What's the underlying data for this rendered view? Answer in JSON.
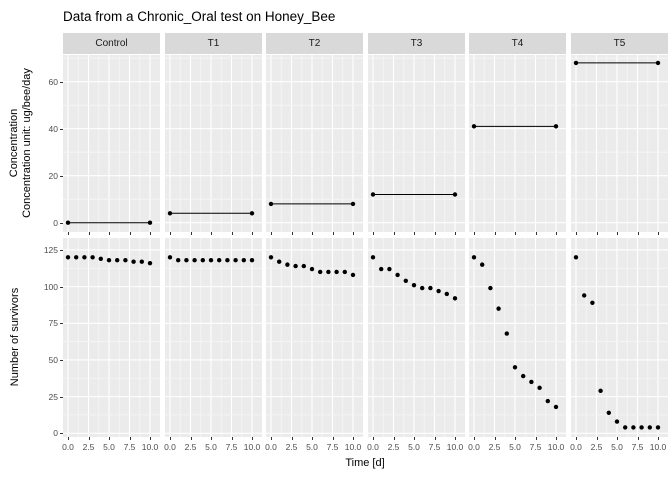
{
  "title": "Data from a Chronic_Oral test on Honey_Bee",
  "x_axis": {
    "title": "Time [d]",
    "tick_labels": [
      "0.0",
      "2.5",
      "5.0",
      "7.5",
      "10.0"
    ],
    "tick_days": [
      0,
      2.5,
      5,
      7.5,
      10
    ],
    "minor_days": [
      1.25,
      3.75,
      6.25,
      8.75
    ]
  },
  "top_plot": {
    "y_title_line1": "Concentration",
    "y_title_line2": "Concentration unit: ug/bee/day",
    "y_ticks": [
      0,
      20,
      40,
      60
    ],
    "y_minor": [
      10,
      30,
      50,
      70
    ]
  },
  "bottom_plot": {
    "y_title": "Number of survivors",
    "y_ticks": [
      0,
      25,
      50,
      75,
      100,
      125
    ],
    "y_minor": [
      12.5,
      37.5,
      62.5,
      87.5,
      112.5
    ]
  },
  "facets": [
    "Control",
    "T1",
    "T2",
    "T3",
    "T4",
    "T5"
  ],
  "chart_data": {
    "type": "scatter",
    "title": "Data from a Chronic_Oral test on Honey_Bee",
    "xlabel": "Time [d]",
    "x_range": [
      0,
      10
    ],
    "days": [
      0,
      1,
      2,
      3,
      4,
      5,
      6,
      7,
      8,
      9,
      10
    ],
    "facets": [
      "Control",
      "T1",
      "T2",
      "T3",
      "T4",
      "T5"
    ],
    "concentration": {
      "ylabel": "Concentration unit: ug/bee/day",
      "ylim": [
        0,
        70
      ],
      "unit": "ug/bee/day",
      "values": [
        0,
        4,
        8,
        12,
        41,
        68
      ]
    },
    "survivors": {
      "ylabel": "Number of survivors",
      "ylim": [
        0,
        125
      ],
      "series": [
        {
          "name": "Control",
          "values": [
            120,
            120,
            120,
            120,
            119,
            118,
            118,
            118,
            117,
            117,
            116
          ]
        },
        {
          "name": "T1",
          "values": [
            120,
            118,
            118,
            118,
            118,
            118,
            118,
            118,
            118,
            118,
            118
          ]
        },
        {
          "name": "T2",
          "values": [
            120,
            117,
            115,
            114,
            114,
            112,
            110,
            110,
            110,
            110,
            108
          ]
        },
        {
          "name": "T3",
          "values": [
            120,
            112,
            112,
            108,
            104,
            101,
            99,
            99,
            97,
            95,
            92
          ]
        },
        {
          "name": "T4",
          "values": [
            120,
            115,
            99,
            85,
            68,
            45,
            39,
            35,
            31,
            22,
            18
          ]
        },
        {
          "name": "T5",
          "values": [
            120,
            94,
            89,
            29,
            14,
            8,
            4,
            4,
            4,
            4,
            4
          ]
        }
      ]
    },
    "colors": {
      "point": "#000000",
      "line": "#000000",
      "panel_background": "#EBEBEB",
      "strip_background": "#D9D9D9",
      "grid_major": "#FFFFFF",
      "grid_minor": "#F5F5F5",
      "axis_text": "#4d4d4d",
      "tick_mark": "#333333"
    }
  }
}
